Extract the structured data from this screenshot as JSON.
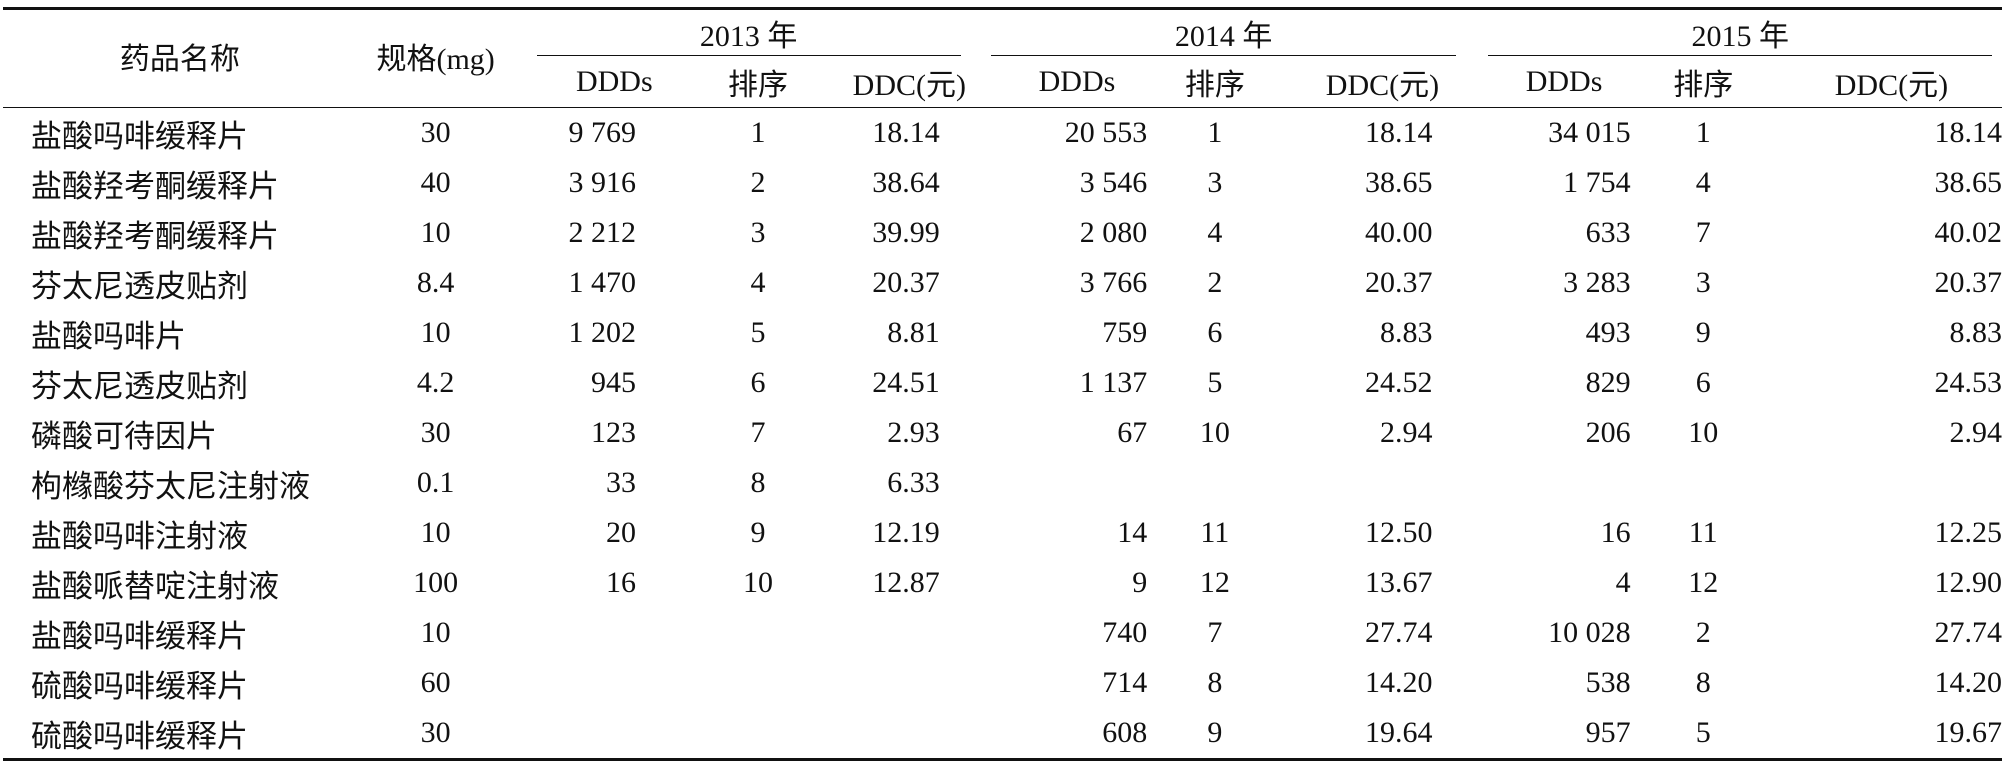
{
  "header": {
    "drug_name": "药品名称",
    "spec": "规格(mg)",
    "years": [
      "2013 年",
      "2014 年",
      "2015 年"
    ],
    "sub_ddds": "DDDs",
    "sub_rank": "排序",
    "sub_ddc": "DDC(元)"
  },
  "rows": [
    {
      "name": "盐酸吗啡缓释片",
      "spec": "30",
      "y2013": {
        "ddds": "9 769",
        "rank": "1",
        "ddc": "18.14"
      },
      "y2014": {
        "ddds": "20 553",
        "rank": "1",
        "ddc": "18.14"
      },
      "y2015": {
        "ddds": "34 015",
        "rank": "1",
        "ddc": "18.14"
      }
    },
    {
      "name": "盐酸羟考酮缓释片",
      "spec": "40",
      "y2013": {
        "ddds": "3 916",
        "rank": "2",
        "ddc": "38.64"
      },
      "y2014": {
        "ddds": "3 546",
        "rank": "3",
        "ddc": "38.65"
      },
      "y2015": {
        "ddds": "1 754",
        "rank": "4",
        "ddc": "38.65"
      }
    },
    {
      "name": "盐酸羟考酮缓释片",
      "spec": "10",
      "y2013": {
        "ddds": "2 212",
        "rank": "3",
        "ddc": "39.99"
      },
      "y2014": {
        "ddds": "2 080",
        "rank": "4",
        "ddc": "40.00"
      },
      "y2015": {
        "ddds": "633",
        "rank": "7",
        "ddc": "40.02"
      }
    },
    {
      "name": "芬太尼透皮贴剂",
      "spec": "8.4",
      "y2013": {
        "ddds": "1 470",
        "rank": "4",
        "ddc": "20.37"
      },
      "y2014": {
        "ddds": "3 766",
        "rank": "2",
        "ddc": "20.37"
      },
      "y2015": {
        "ddds": "3 283",
        "rank": "3",
        "ddc": "20.37"
      }
    },
    {
      "name": "盐酸吗啡片",
      "spec": "10",
      "y2013": {
        "ddds": "1 202",
        "rank": "5",
        "ddc": "8.81"
      },
      "y2014": {
        "ddds": "759",
        "rank": "6",
        "ddc": "8.83"
      },
      "y2015": {
        "ddds": "493",
        "rank": "9",
        "ddc": "8.83"
      }
    },
    {
      "name": "芬太尼透皮贴剂",
      "spec": "4.2",
      "y2013": {
        "ddds": "945",
        "rank": "6",
        "ddc": "24.51"
      },
      "y2014": {
        "ddds": "1 137",
        "rank": "5",
        "ddc": "24.52"
      },
      "y2015": {
        "ddds": "829",
        "rank": "6",
        "ddc": "24.53"
      }
    },
    {
      "name": "磷酸可待因片",
      "spec": "30",
      "y2013": {
        "ddds": "123",
        "rank": "7",
        "ddc": "2.93"
      },
      "y2014": {
        "ddds": "67",
        "rank": "10",
        "ddc": "2.94"
      },
      "y2015": {
        "ddds": "206",
        "rank": "10",
        "ddc": "2.94"
      }
    },
    {
      "name": "枸橼酸芬太尼注射液",
      "spec": "0.1",
      "y2013": {
        "ddds": "33",
        "rank": "8",
        "ddc": "6.33"
      },
      "y2014": {
        "ddds": "",
        "rank": "",
        "ddc": ""
      },
      "y2015": {
        "ddds": "",
        "rank": "",
        "ddc": ""
      }
    },
    {
      "name": "盐酸吗啡注射液",
      "spec": "10",
      "y2013": {
        "ddds": "20",
        "rank": "9",
        "ddc": "12.19"
      },
      "y2014": {
        "ddds": "14",
        "rank": "11",
        "ddc": "12.50"
      },
      "y2015": {
        "ddds": "16",
        "rank": "11",
        "ddc": "12.25"
      }
    },
    {
      "name": "盐酸哌替啶注射液",
      "spec": "100",
      "y2013": {
        "ddds": "16",
        "rank": "10",
        "ddc": "12.87"
      },
      "y2014": {
        "ddds": "9",
        "rank": "12",
        "ddc": "13.67"
      },
      "y2015": {
        "ddds": "4",
        "rank": "12",
        "ddc": "12.90"
      }
    },
    {
      "name": "盐酸吗啡缓释片",
      "spec": "10",
      "y2013": {
        "ddds": "",
        "rank": "",
        "ddc": ""
      },
      "y2014": {
        "ddds": "740",
        "rank": "7",
        "ddc": "27.74"
      },
      "y2015": {
        "ddds": "10 028",
        "rank": "2",
        "ddc": "27.74"
      }
    },
    {
      "name": "硫酸吗啡缓释片",
      "spec": "60",
      "y2013": {
        "ddds": "",
        "rank": "",
        "ddc": ""
      },
      "y2014": {
        "ddds": "714",
        "rank": "8",
        "ddc": "14.20"
      },
      "y2015": {
        "ddds": "538",
        "rank": "8",
        "ddc": "14.20"
      }
    },
    {
      "name": "硫酸吗啡缓释片",
      "spec": "30",
      "y2013": {
        "ddds": "",
        "rank": "",
        "ddc": ""
      },
      "y2014": {
        "ddds": "608",
        "rank": "9",
        "ddc": "19.64"
      },
      "y2015": {
        "ddds": "957",
        "rank": "5",
        "ddc": "19.67"
      }
    }
  ]
}
